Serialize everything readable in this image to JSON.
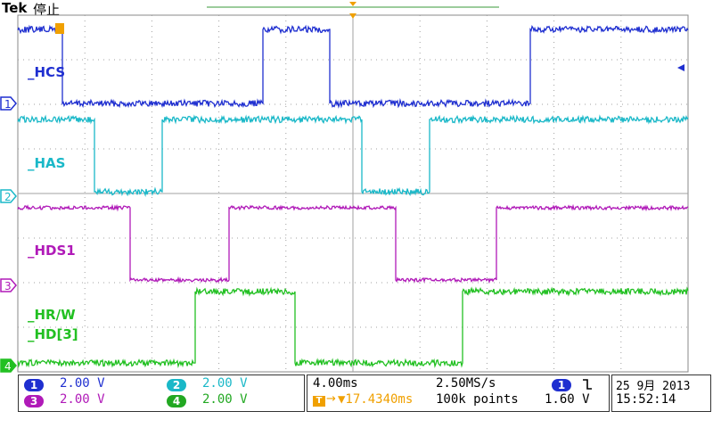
{
  "header": {
    "brand": "Tek",
    "state": "停止"
  },
  "channels": [
    {
      "id": "1",
      "name": "_HCS",
      "color": "#1f2fd0",
      "scale": "2.00 V"
    },
    {
      "id": "2",
      "name": "_HAS",
      "color": "#1ab8c8",
      "scale": "2.00 V"
    },
    {
      "id": "3",
      "name": "_HDS1",
      "color": "#b01ab8",
      "scale": "2.00 V"
    },
    {
      "id": "4",
      "name": "_HR/W",
      "name2": "_HD[3]",
      "color": "#22c022",
      "scale": "2.00 V"
    }
  ],
  "timebase": {
    "time_div": "4.00ms",
    "sample_rate": "2.50MS/s",
    "trigger_pos": "▼17.4340ms",
    "record": "100k points"
  },
  "trigger": {
    "source": "1",
    "slope_icon": "falling-edge-icon",
    "level": "1.60 V"
  },
  "datetime": {
    "date": "25 9月  2013",
    "time": "15:52:14"
  },
  "colors": {
    "grid": "#a0a0a0",
    "trigger_marker": "#f0a000"
  }
}
